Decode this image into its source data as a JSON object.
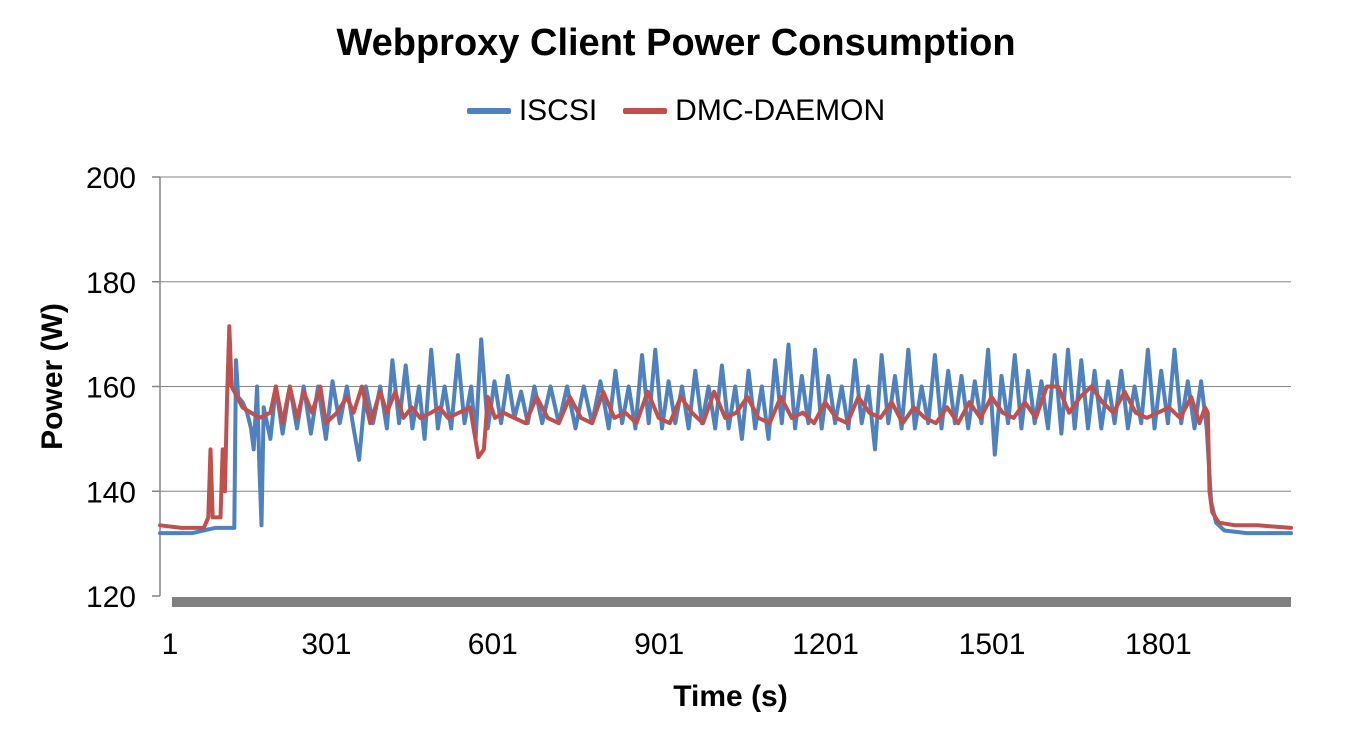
{
  "chart_data": {
    "type": "line",
    "title": "Webproxy Client Power Consumption",
    "xlabel": "Time (s)",
    "ylabel": "Power (W)",
    "xlim": [
      1,
      2040
    ],
    "ylim": [
      120,
      200
    ],
    "x_ticks": [
      1,
      301,
      601,
      901,
      1201,
      1501,
      1801
    ],
    "x_tick_labels": [
      "1",
      "301",
      "601",
      "901",
      "1201",
      "1501",
      "1801"
    ],
    "y_ticks": [
      120,
      140,
      160,
      180,
      200
    ],
    "y_tick_labels": [
      "120",
      "140",
      "160",
      "180",
      "200"
    ],
    "grid": "horizontal",
    "legend": "top-center",
    "series": [
      {
        "name": "ISCSI",
        "color": "#4F81BD",
        "points": [
          [
            1,
            132
          ],
          [
            30,
            132
          ],
          [
            60,
            132
          ],
          [
            100,
            133
          ],
          [
            130,
            133
          ],
          [
            135,
            133
          ],
          [
            138,
            165
          ],
          [
            142,
            158
          ],
          [
            150,
            157
          ],
          [
            158,
            155
          ],
          [
            165,
            152
          ],
          [
            170,
            148
          ],
          [
            176,
            160
          ],
          [
            180,
            145
          ],
          [
            184,
            133.5
          ],
          [
            188,
            156
          ],
          [
            200,
            150
          ],
          [
            210,
            160
          ],
          [
            222,
            151
          ],
          [
            235,
            160
          ],
          [
            248,
            152
          ],
          [
            260,
            160
          ],
          [
            273,
            151
          ],
          [
            286,
            160
          ],
          [
            300,
            150
          ],
          [
            312,
            161
          ],
          [
            325,
            153
          ],
          [
            338,
            160
          ],
          [
            350,
            152
          ],
          [
            360,
            146
          ],
          [
            372,
            160
          ],
          [
            385,
            153
          ],
          [
            398,
            160
          ],
          [
            410,
            152
          ],
          [
            420,
            165
          ],
          [
            432,
            153
          ],
          [
            444,
            164
          ],
          [
            456,
            152
          ],
          [
            468,
            160
          ],
          [
            478,
            150
          ],
          [
            490,
            167
          ],
          [
            502,
            152
          ],
          [
            514,
            160
          ],
          [
            526,
            152
          ],
          [
            538,
            166
          ],
          [
            550,
            153
          ],
          [
            562,
            160
          ],
          [
            570,
            150
          ],
          [
            580,
            169
          ],
          [
            592,
            152
          ],
          [
            604,
            161
          ],
          [
            616,
            153
          ],
          [
            628,
            162
          ],
          [
            640,
            154
          ],
          [
            652,
            159
          ],
          [
            664,
            153
          ],
          [
            676,
            160
          ],
          [
            690,
            153
          ],
          [
            705,
            160
          ],
          [
            720,
            153
          ],
          [
            735,
            160
          ],
          [
            750,
            152
          ],
          [
            765,
            160
          ],
          [
            780,
            153
          ],
          [
            795,
            161
          ],
          [
            810,
            152
          ],
          [
            822,
            163
          ],
          [
            834,
            153
          ],
          [
            846,
            160
          ],
          [
            858,
            152
          ],
          [
            870,
            166
          ],
          [
            882,
            153
          ],
          [
            894,
            167
          ],
          [
            906,
            152
          ],
          [
            918,
            161
          ],
          [
            930,
            153
          ],
          [
            942,
            160
          ],
          [
            954,
            152
          ],
          [
            966,
            163
          ],
          [
            978,
            153
          ],
          [
            990,
            160
          ],
          [
            1002,
            152
          ],
          [
            1014,
            164
          ],
          [
            1026,
            152
          ],
          [
            1038,
            160
          ],
          [
            1050,
            150
          ],
          [
            1062,
            163
          ],
          [
            1074,
            152
          ],
          [
            1086,
            160
          ],
          [
            1098,
            150
          ],
          [
            1110,
            165
          ],
          [
            1122,
            153
          ],
          [
            1134,
            168
          ],
          [
            1146,
            152
          ],
          [
            1158,
            162
          ],
          [
            1170,
            153
          ],
          [
            1182,
            167
          ],
          [
            1194,
            152
          ],
          [
            1206,
            162
          ],
          [
            1218,
            153
          ],
          [
            1230,
            160
          ],
          [
            1242,
            152
          ],
          [
            1254,
            165
          ],
          [
            1266,
            153
          ],
          [
            1278,
            160
          ],
          [
            1290,
            148
          ],
          [
            1302,
            166
          ],
          [
            1314,
            153
          ],
          [
            1326,
            162
          ],
          [
            1338,
            152
          ],
          [
            1350,
            167
          ],
          [
            1362,
            152
          ],
          [
            1374,
            160
          ],
          [
            1386,
            153
          ],
          [
            1398,
            166
          ],
          [
            1410,
            152
          ],
          [
            1422,
            163
          ],
          [
            1434,
            153
          ],
          [
            1446,
            162
          ],
          [
            1458,
            152
          ],
          [
            1470,
            161
          ],
          [
            1482,
            153
          ],
          [
            1494,
            167
          ],
          [
            1506,
            147
          ],
          [
            1518,
            162
          ],
          [
            1530,
            153
          ],
          [
            1542,
            166
          ],
          [
            1554,
            152
          ],
          [
            1566,
            163
          ],
          [
            1578,
            153
          ],
          [
            1590,
            161
          ],
          [
            1602,
            152
          ],
          [
            1614,
            166
          ],
          [
            1626,
            151
          ],
          [
            1638,
            167
          ],
          [
            1650,
            152
          ],
          [
            1662,
            165
          ],
          [
            1674,
            152
          ],
          [
            1686,
            163
          ],
          [
            1698,
            152
          ],
          [
            1710,
            161
          ],
          [
            1722,
            153
          ],
          [
            1734,
            163
          ],
          [
            1746,
            152
          ],
          [
            1758,
            160
          ],
          [
            1770,
            153
          ],
          [
            1782,
            167
          ],
          [
            1794,
            152
          ],
          [
            1806,
            163
          ],
          [
            1818,
            153
          ],
          [
            1830,
            167
          ],
          [
            1842,
            153
          ],
          [
            1854,
            161
          ],
          [
            1866,
            152
          ],
          [
            1878,
            161
          ],
          [
            1888,
            152
          ],
          [
            1896,
            138
          ],
          [
            1905,
            134
          ],
          [
            1920,
            132.5
          ],
          [
            1960,
            132
          ],
          [
            2000,
            132
          ],
          [
            2040,
            132
          ]
        ]
      },
      {
        "name": "DMC-DAEMON",
        "color": "#C0504D",
        "points": [
          [
            1,
            133.5
          ],
          [
            40,
            133
          ],
          [
            80,
            133
          ],
          [
            88,
            135
          ],
          [
            92,
            148
          ],
          [
            96,
            135
          ],
          [
            110,
            135
          ],
          [
            114,
            148
          ],
          [
            118,
            140
          ],
          [
            122,
            158
          ],
          [
            126,
            171.5
          ],
          [
            130,
            160
          ],
          [
            140,
            158
          ],
          [
            150,
            156
          ],
          [
            165,
            155
          ],
          [
            180,
            154
          ],
          [
            200,
            155
          ],
          [
            210,
            160
          ],
          [
            222,
            153
          ],
          [
            235,
            160
          ],
          [
            248,
            154
          ],
          [
            260,
            159
          ],
          [
            275,
            155
          ],
          [
            290,
            160
          ],
          [
            300,
            153
          ],
          [
            320,
            155
          ],
          [
            338,
            158
          ],
          [
            350,
            155
          ],
          [
            365,
            160
          ],
          [
            380,
            153
          ],
          [
            398,
            159
          ],
          [
            410,
            155
          ],
          [
            425,
            159
          ],
          [
            440,
            154
          ],
          [
            455,
            156
          ],
          [
            470,
            154
          ],
          [
            490,
            155
          ],
          [
            505,
            156
          ],
          [
            520,
            154
          ],
          [
            540,
            155
          ],
          [
            560,
            156
          ],
          [
            575,
            146.5
          ],
          [
            585,
            148
          ],
          [
            592,
            158
          ],
          [
            605,
            154
          ],
          [
            620,
            155
          ],
          [
            640,
            154
          ],
          [
            660,
            153
          ],
          [
            680,
            158
          ],
          [
            700,
            154
          ],
          [
            720,
            153
          ],
          [
            740,
            158
          ],
          [
            760,
            154
          ],
          [
            780,
            153
          ],
          [
            800,
            159
          ],
          [
            820,
            154
          ],
          [
            840,
            155
          ],
          [
            860,
            153
          ],
          [
            880,
            159
          ],
          [
            900,
            154
          ],
          [
            920,
            153
          ],
          [
            940,
            158
          ],
          [
            960,
            155
          ],
          [
            980,
            153
          ],
          [
            1000,
            159
          ],
          [
            1020,
            154
          ],
          [
            1040,
            155
          ],
          [
            1060,
            158
          ],
          [
            1080,
            154
          ],
          [
            1100,
            153
          ],
          [
            1120,
            158
          ],
          [
            1140,
            154
          ],
          [
            1160,
            155
          ],
          [
            1180,
            153
          ],
          [
            1200,
            157
          ],
          [
            1220,
            154
          ],
          [
            1240,
            153
          ],
          [
            1260,
            158
          ],
          [
            1280,
            155
          ],
          [
            1300,
            154
          ],
          [
            1320,
            157
          ],
          [
            1340,
            153
          ],
          [
            1360,
            156
          ],
          [
            1380,
            154
          ],
          [
            1400,
            153
          ],
          [
            1420,
            156
          ],
          [
            1440,
            153
          ],
          [
            1460,
            157
          ],
          [
            1480,
            154
          ],
          [
            1500,
            158
          ],
          [
            1520,
            155
          ],
          [
            1540,
            154
          ],
          [
            1560,
            157
          ],
          [
            1580,
            154
          ],
          [
            1600,
            160
          ],
          [
            1620,
            160
          ],
          [
            1640,
            155
          ],
          [
            1660,
            158
          ],
          [
            1680,
            160
          ],
          [
            1700,
            157
          ],
          [
            1720,
            155
          ],
          [
            1740,
            159
          ],
          [
            1760,
            155
          ],
          [
            1780,
            154
          ],
          [
            1800,
            155
          ],
          [
            1820,
            156
          ],
          [
            1840,
            154
          ],
          [
            1860,
            158
          ],
          [
            1875,
            153
          ],
          [
            1885,
            156
          ],
          [
            1890,
            155
          ],
          [
            1893,
            140
          ],
          [
            1898,
            136
          ],
          [
            1910,
            134
          ],
          [
            1940,
            133.5
          ],
          [
            1980,
            133.5
          ],
          [
            2040,
            133
          ]
        ]
      }
    ]
  }
}
